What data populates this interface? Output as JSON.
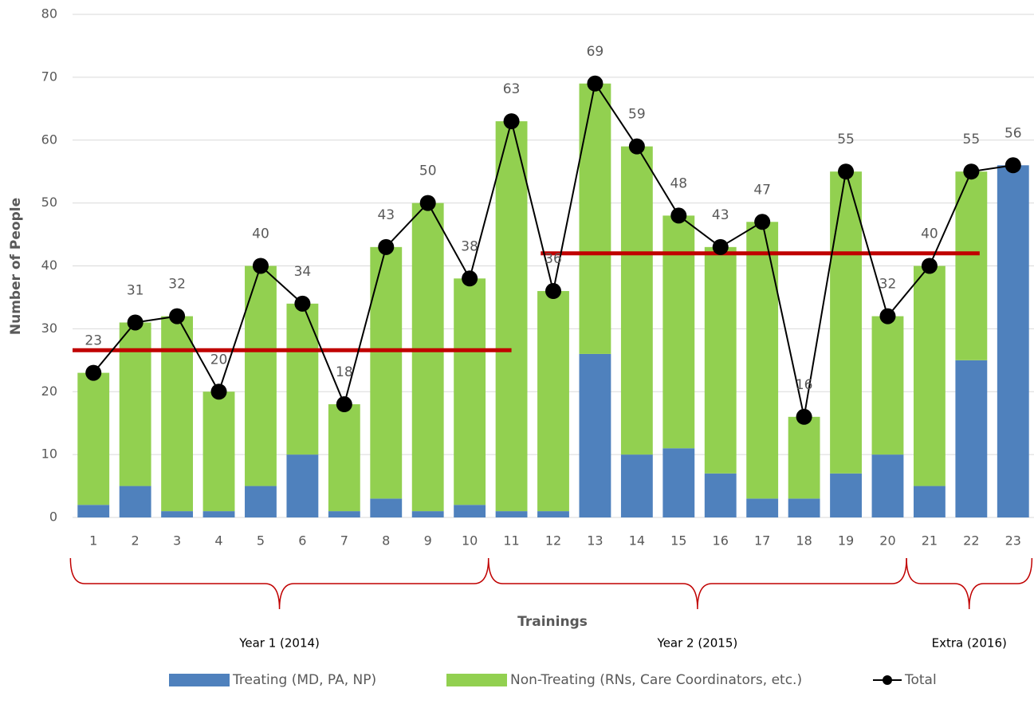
{
  "chart_data": {
    "type": "bar",
    "stacked": true,
    "y_label": "Number of People",
    "x_label": "Trainings",
    "categories": [
      "1",
      "2",
      "3",
      "4",
      "5",
      "6",
      "7",
      "8",
      "9",
      "10",
      "11",
      "12",
      "13",
      "14",
      "15",
      "16",
      "17",
      "18",
      "19",
      "20",
      "21",
      "22",
      "23"
    ],
    "series": [
      {
        "name": "Treating (MD, PA, NP)",
        "color": "#4f81bd",
        "type": "bar",
        "values": [
          2,
          5,
          1,
          1,
          5,
          10,
          1,
          3,
          1,
          2,
          1,
          1,
          26,
          10,
          11,
          7,
          3,
          3,
          7,
          10,
          5,
          25,
          56
        ]
      },
      {
        "name": "Non-Treating (RNs, Care Coordinators, etc.)",
        "color": "#92d050",
        "type": "bar",
        "values": [
          21,
          26,
          31,
          19,
          35,
          24,
          17,
          40,
          49,
          36,
          62,
          35,
          43,
          49,
          37,
          36,
          44,
          13,
          48,
          22,
          35,
          30,
          0
        ]
      },
      {
        "name": "Total",
        "color": "#000000",
        "type": "line",
        "values": [
          23,
          31,
          32,
          20,
          40,
          34,
          18,
          43,
          50,
          38,
          63,
          36,
          69,
          59,
          48,
          43,
          47,
          16,
          55,
          32,
          40,
          55,
          56
        ]
      }
    ],
    "ylim": [
      0,
      80
    ],
    "yticks": [
      0,
      10,
      20,
      30,
      40,
      50,
      60,
      70,
      80
    ],
    "grid": true,
    "reference_lines": [
      {
        "value": 26.6,
        "color": "#c00000",
        "x": [
          0.5,
          11
        ]
      },
      {
        "value": 42,
        "color": "#c00000",
        "x": [
          11.7,
          22.2
        ]
      }
    ],
    "groups": [
      {
        "label": "Year 1 (2014)",
        "start": 0,
        "end": 9
      },
      {
        "label": "Year 2 (2015)",
        "start": 10,
        "end": 19
      },
      {
        "label": "Extra (2016)",
        "start": 20,
        "end": 22
      }
    ],
    "legend": "bottom"
  }
}
